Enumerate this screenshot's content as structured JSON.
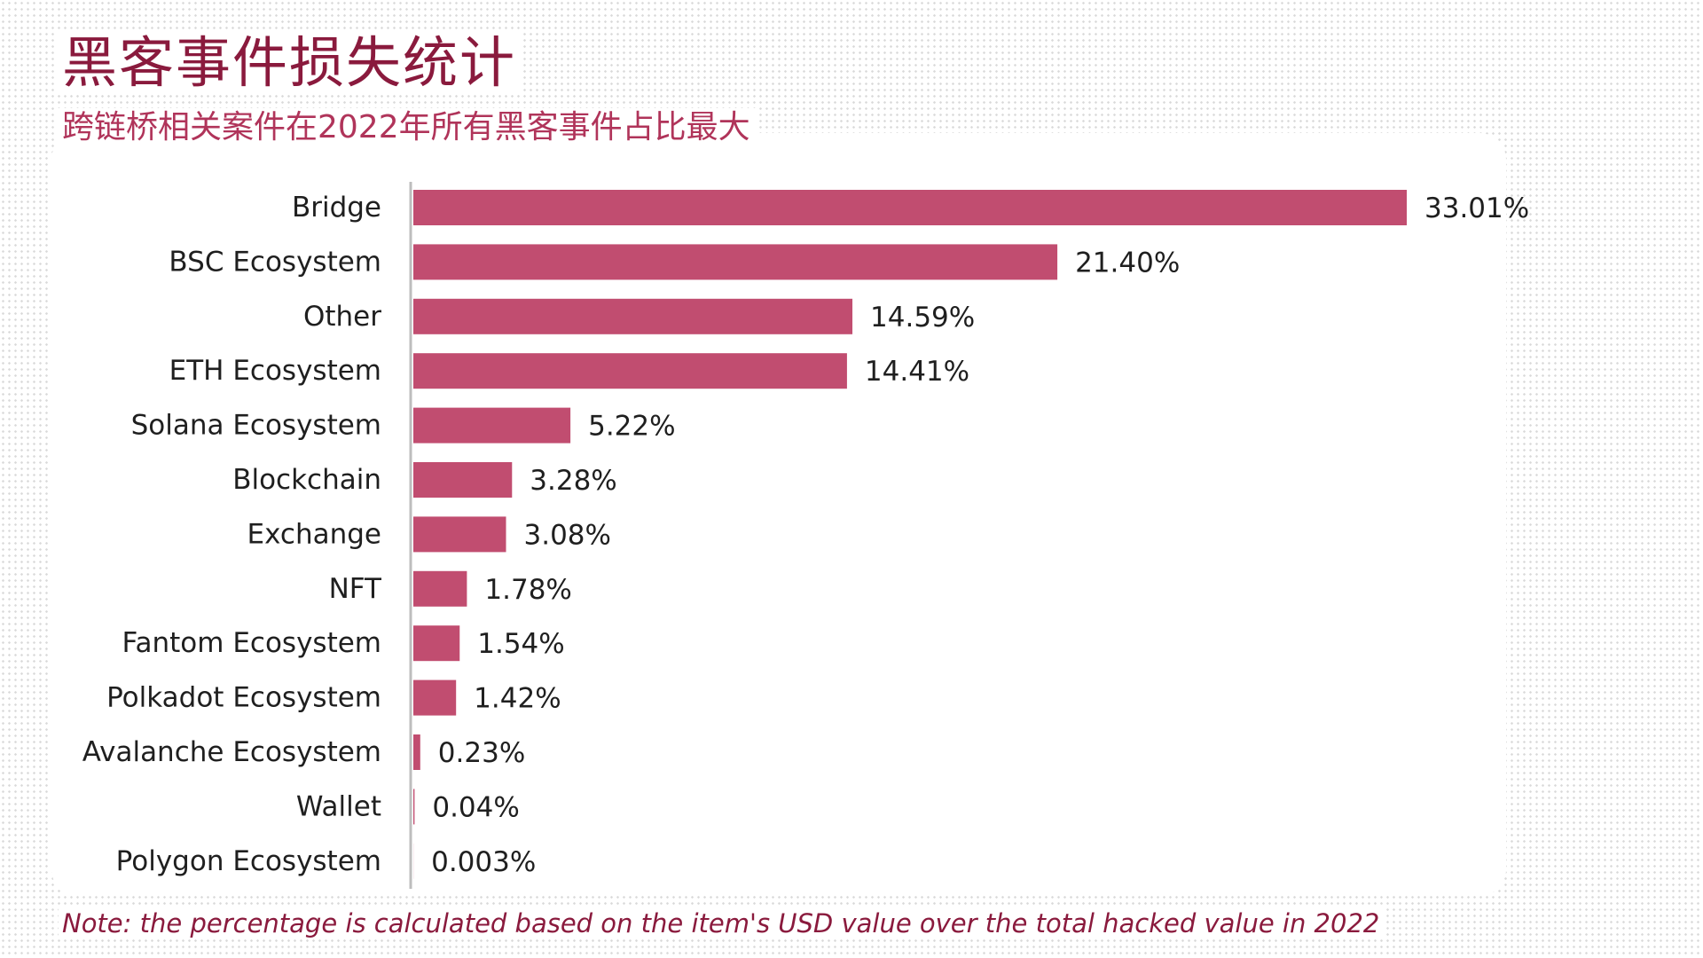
{
  "header": {
    "title": "黑客事件损失统计",
    "subtitle": "跨链桥相关案件在2022年所有黑客事件占比最大"
  },
  "note": "Note: the percentage is calculated based on the item's USD value over the total hacked value in 2022",
  "colors": {
    "title": "#8a1a3d",
    "subtitle": "#b0345a",
    "bar": "#c14d70",
    "axis": "#bdbdbd",
    "text": "#1f1f1f"
  },
  "chart_data": {
    "type": "bar",
    "orientation": "horizontal",
    "title": "黑客事件损失统计",
    "subtitle": "跨链桥相关案件在2022年所有黑客事件占比最大",
    "categories": [
      "Bridge",
      "BSC Ecosystem",
      "Other",
      "ETH Ecosystem",
      "Solana Ecosystem",
      "Blockchain",
      "Exchange",
      "NFT",
      "Fantom Ecosystem",
      "Polkadot Ecosystem",
      "Avalanche Ecosystem",
      "Wallet",
      "Polygon Ecosystem"
    ],
    "values": [
      33.01,
      21.4,
      14.59,
      14.41,
      5.22,
      3.28,
      3.08,
      1.78,
      1.54,
      1.42,
      0.23,
      0.04,
      0.003
    ],
    "value_labels": [
      "33.01%",
      "21.40%",
      "14.59%",
      "14.41%",
      "5.22%",
      "3.28%",
      "3.08%",
      "1.78%",
      "1.54%",
      "1.42%",
      "0.23%",
      "0.04%",
      "0.003%"
    ],
    "unit": "%",
    "xlabel": "",
    "ylabel": "",
    "xlim": [
      0,
      33.01
    ],
    "grid": false,
    "legend": "none"
  }
}
